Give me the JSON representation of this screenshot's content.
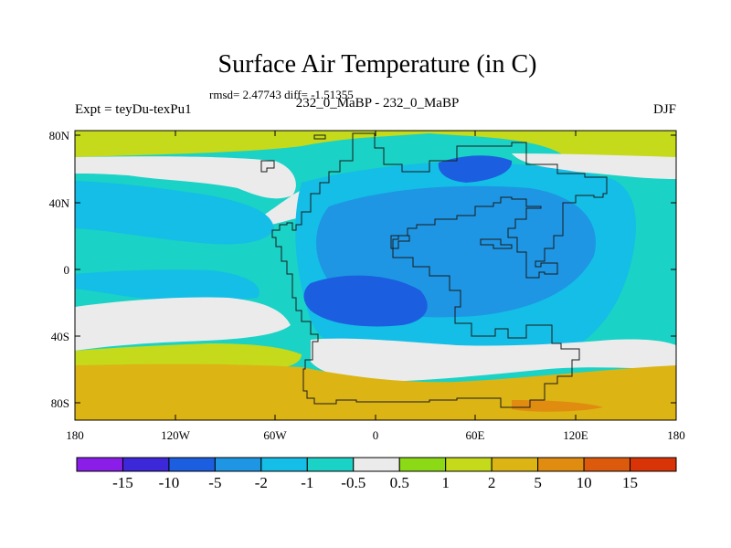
{
  "title": "Surface Air Temperature (in C)",
  "stats": "rmsd= 2.47743 diff= -1.51355",
  "left_label": "Expt = teyDu-texPu1",
  "center_label": "232_0_MaBP - 232_0_MaBP",
  "right_label": "DJF",
  "y_ticks": [
    "80N",
    "40N",
    "0",
    "40S",
    "80S"
  ],
  "x_ticks": [
    "180",
    "120W",
    "60W",
    "0",
    "60E",
    "120E",
    "180"
  ],
  "colorbar": {
    "labels": [
      "-15",
      "-10",
      "-5",
      "-2",
      "-1",
      "-0.5",
      "0.5",
      "1",
      "2",
      "5",
      "10",
      "15"
    ],
    "colors": [
      "#8a1ee8",
      "#3c28d8",
      "#1c5ee0",
      "#1e96e4",
      "#14bee6",
      "#1ad2c6",
      "#ebebeb",
      "#8cda16",
      "#c4da1a",
      "#dcb414",
      "#e08c10",
      "#dc5a0c",
      "#d83408"
    ]
  },
  "map_colors": {
    "pole": "#c4da1a",
    "warm": "#dcb414",
    "hot": "#e08c10",
    "neutral": "#ebebeb",
    "cool": "#1ad2c6",
    "cold": "#14bee6",
    "colder": "#1e96e4",
    "coldest": "#1c5ee0",
    "outline": "#1a1a1a"
  }
}
